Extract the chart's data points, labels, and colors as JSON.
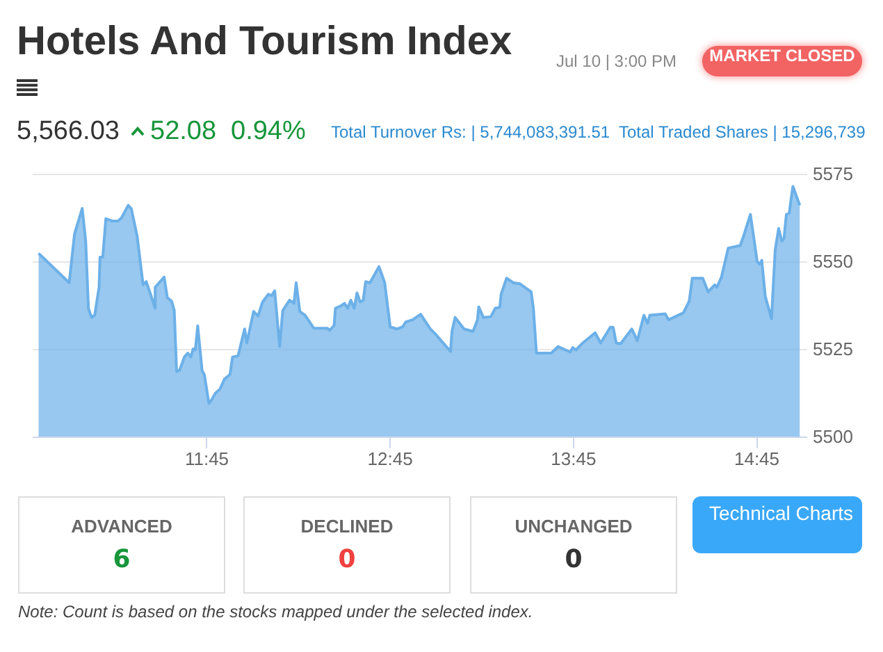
{
  "chart_data": {
    "type": "area",
    "title": "Hotels And Tourism Index",
    "annotations": [
      "Jul 10 | 3:00 PM",
      "MARKET CLOSED",
      "5,566.03",
      "52.08",
      "0.94%",
      "Total Turnover Rs: | 5,744,083,391.51",
      "Total Traded Shares | 15,296,739",
      "ADVANCED",
      "6",
      "DECLINED",
      "0",
      "UNCHANGED",
      "0",
      "Technical Charts",
      "Note: Count is based on the stocks mapped under the selected index."
    ],
    "x": [
      10.836,
      11.003,
      11.032,
      11.074,
      11.093,
      11.108,
      11.125,
      11.142,
      11.166,
      11.171,
      11.186,
      11.203,
      11.239,
      11.269,
      11.288,
      11.325,
      11.342,
      11.374,
      11.406,
      11.423,
      11.447,
      11.472,
      11.472,
      11.521,
      11.538,
      11.562,
      11.576,
      11.589,
      11.606,
      11.631,
      11.65,
      11.667,
      11.679,
      11.691,
      11.704,
      11.728,
      11.74,
      11.765,
      11.777,
      11.801,
      11.825,
      11.85,
      11.88,
      11.894,
      11.924,
      11.96,
      11.972,
      12.009,
      12.033,
      12.058,
      12.089,
      12.107,
      12.124,
      12.151,
      12.168,
      12.205,
      12.229,
      12.241,
      12.261,
      12.29,
      12.338,
      12.412,
      12.424,
      12.448,
      12.455,
      12.485,
      12.505,
      12.522,
      12.539,
      12.558,
      12.573,
      12.59,
      12.607,
      12.62,
      12.644,
      12.693,
      12.724,
      12.754,
      12.79,
      12.822,
      12.839,
      12.876,
      12.92,
      12.973,
      12.998,
      13.083,
      13.091,
      13.108,
      13.157,
      13.206,
      13.23,
      13.237,
      13.262,
      13.303,
      13.327,
      13.352,
      13.359,
      13.389,
      13.425,
      13.462,
      13.523,
      13.535,
      13.552,
      13.633,
      13.67,
      13.736,
      13.75,
      13.767,
      13.804,
      13.872,
      13.902,
      13.955,
      13.97,
      13.987,
      14.011,
      14.072,
      14.102,
      14.138,
      14.158,
      14.17,
      14.255,
      14.272,
      14.353,
      14.385,
      14.402,
      14.459,
      14.488,
      14.524,
      14.536,
      14.561,
      14.598,
      14.663,
      14.683,
      14.719,
      14.756,
      14.768,
      14.781,
      14.8,
      14.834,
      14.854,
      14.873,
      14.89,
      14.902,
      14.915,
      14.931,
      14.939,
      14.951,
      14.988
    ],
    "series": [
      {
        "color": "#6cb0e8",
        "values": [
          5552.3,
          5543.9,
          5557.8,
          5565.1,
          5555.8,
          5536.6,
          5534.0,
          5534.6,
          5542.6,
          5551.2,
          5551.2,
          5562.2,
          5561.5,
          5561.5,
          5562.4,
          5566.0,
          5565.0,
          5557.1,
          5543.3,
          5544.2,
          5540.6,
          5536.6,
          5542.6,
          5545.5,
          5539.7,
          5538.6,
          5536.0,
          5518.5,
          5519.0,
          5522.7,
          5523.8,
          5522.7,
          5525.0,
          5524.7,
          5531.6,
          5518.8,
          5517.7,
          5509.5,
          5510.2,
          5512.4,
          5513.5,
          5516.4,
          5517.7,
          5522.7,
          5523.0,
          5530.7,
          5526.7,
          5535.7,
          5534.4,
          5538.4,
          5540.6,
          5540.2,
          5541.6,
          5525.7,
          5536.0,
          5538.9,
          5538.0,
          5543.9,
          5535.7,
          5534.6,
          5530.9,
          5530.9,
          5530.3,
          5531.7,
          5536.6,
          5537.3,
          5538.0,
          5536.6,
          5538.9,
          5536.6,
          5541.0,
          5538.4,
          5538.9,
          5544.2,
          5543.9,
          5548.5,
          5543.9,
          5531.3,
          5530.7,
          5531.3,
          5532.7,
          5533.3,
          5534.9,
          5530.7,
          5529.4,
          5524.3,
          5530.0,
          5534.0,
          5530.7,
          5530.0,
          5533.3,
          5537.0,
          5534.0,
          5534.2,
          5536.6,
          5536.9,
          5540.6,
          5545.2,
          5543.9,
          5543.6,
          5541.3,
          5536.6,
          5523.8,
          5523.8,
          5525.7,
          5524.1,
          5525.4,
          5524.7,
          5526.7,
          5529.6,
          5526.7,
          5531.2,
          5531.2,
          5526.7,
          5526.5,
          5530.7,
          5527.4,
          5534.6,
          5532.3,
          5534.6,
          5535.0,
          5533.3,
          5535.3,
          5538.6,
          5545.2,
          5545.2,
          5541.3,
          5543.3,
          5542.6,
          5545.5,
          5553.8,
          5554.5,
          5557.4,
          5563.4,
          5549.9,
          5549.2,
          5550.3,
          5540.0,
          5533.6,
          5553.2,
          5559.4,
          5555.8,
          5556.5,
          5563.4,
          5563.8,
          5567.1,
          5571.4,
          5566.0
        ]
      }
    ],
    "xlim": [
      10.8,
      15.025
    ],
    "xticks": [
      {
        "value": 11.75,
        "label": "11:45"
      },
      {
        "value": 12.75,
        "label": "12:45"
      },
      {
        "value": 13.75,
        "label": "13:45"
      },
      {
        "value": 14.75,
        "label": "14:45"
      }
    ],
    "ylim": [
      5500,
      5575
    ],
    "yticks": [
      5500,
      5525,
      5550,
      5575
    ],
    "grid": "y"
  }
}
